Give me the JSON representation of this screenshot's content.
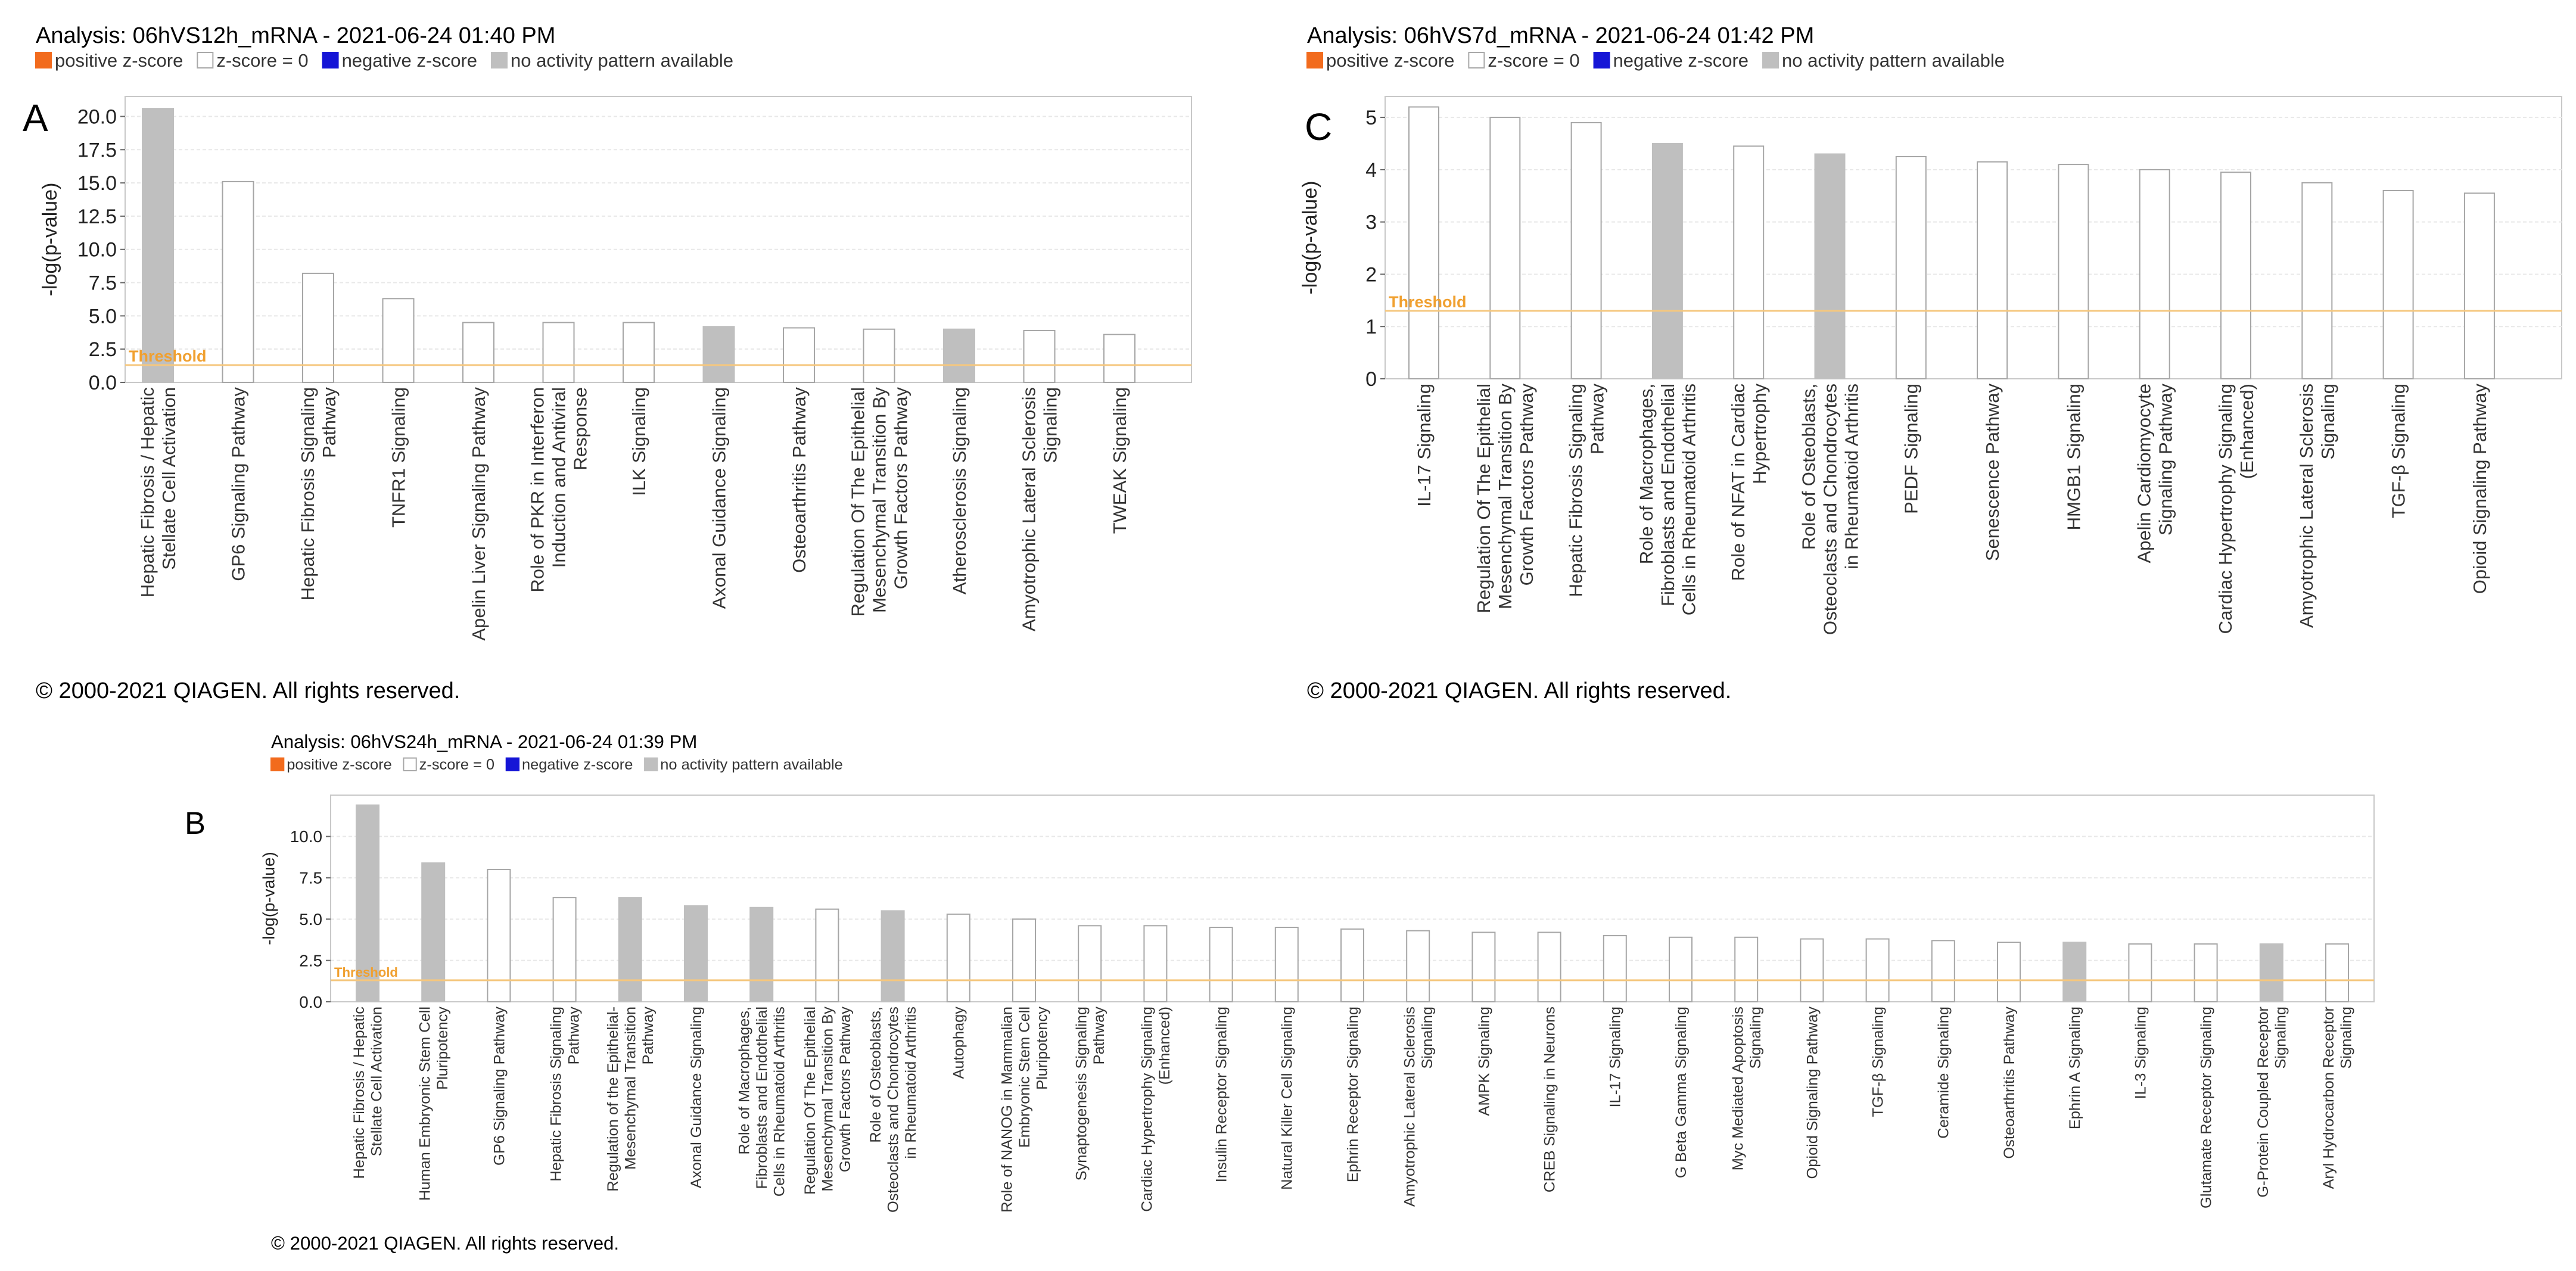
{
  "figure_letters": [
    "A",
    "C",
    "B"
  ],
  "legend": {
    "items": [
      {
        "label": "positive z-score",
        "color": "#F26B1D",
        "border": "#F26B1D"
      },
      {
        "label": "z-score = 0",
        "color": "#FFFFFF",
        "border": "#A9A9A9"
      },
      {
        "label": "negative z-score",
        "color": "#1515D6",
        "border": "#1515D6"
      },
      {
        "label": "no activity pattern available",
        "color": "#BFBFBF",
        "border": "#BFBFBF"
      }
    ]
  },
  "colors": {
    "grey_bar": "#BFBFBF",
    "white_bar_stroke": "#A6A6A6",
    "threshold": "#F5C77E",
    "threshold_text": "#F0A030",
    "grid": "#E8E8E8",
    "axis": "#C8C8C8"
  },
  "chart_data": [
    {
      "panel": "A",
      "type": "bar",
      "title": "Analysis: 06hVS12h_mRNA - 2021-06-24 01:40 PM",
      "ylabel": "-log(p-value)",
      "xlabel": "",
      "ylim": [
        0,
        21.5
      ],
      "yticks": [
        0.0,
        2.5,
        5.0,
        7.5,
        10.0,
        12.5,
        15.0,
        17.5,
        20.0
      ],
      "ytick_labels": [
        "0.0",
        "2.5",
        "5.0",
        "7.5",
        "10.0",
        "12.5",
        "15.0",
        "17.5",
        "20.0"
      ],
      "threshold": 1.3,
      "threshold_label": "Threshold",
      "grid": true,
      "copyright": "© 2000-2021 QIAGEN. All rights reserved.",
      "categories": [
        [
          "Hepatic Fibrosis / Hepatic",
          "Stellate Cell Activation"
        ],
        [
          "GP6 Signaling Pathway"
        ],
        [
          "Hepatic Fibrosis Signaling",
          "Pathway"
        ],
        [
          "TNFR1 Signaling"
        ],
        [
          "Apelin Liver Signaling Pathway"
        ],
        [
          "Role of PKR in Interferon",
          "Induction and Antiviral",
          "Response"
        ],
        [
          "ILK Signaling"
        ],
        [
          "Axonal Guidance Signaling"
        ],
        [
          "Osteoarthritis Pathway"
        ],
        [
          "Regulation Of The Epithelial",
          "Mesenchymal Transition By",
          "Growth Factors Pathway"
        ],
        [
          "Atherosclerosis Signaling"
        ],
        [
          "Amyotrophic Lateral Sclerosis",
          "Signaling"
        ],
        [
          "TWEAK Signaling"
        ]
      ],
      "values": [
        20.6,
        15.1,
        8.2,
        6.3,
        4.5,
        4.5,
        4.5,
        4.2,
        4.1,
        4.0,
        4.0,
        3.9,
        3.6
      ],
      "zscore": [
        "na",
        "zero",
        "zero",
        "zero",
        "zero",
        "zero",
        "zero",
        "na",
        "zero",
        "zero",
        "na",
        "zero",
        "zero"
      ]
    },
    {
      "panel": "C",
      "type": "bar",
      "title": "Analysis: 06hVS7d_mRNA - 2021-06-24 01:42 PM",
      "ylabel": "-log(p-value)",
      "xlabel": "",
      "ylim": [
        0,
        5.4
      ],
      "yticks": [
        0,
        1,
        2,
        3,
        4,
        5
      ],
      "ytick_labels": [
        "0",
        "1",
        "2",
        "3",
        "4",
        "5"
      ],
      "threshold": 1.3,
      "threshold_label": "Threshold",
      "grid": true,
      "copyright": "© 2000-2021 QIAGEN. All rights reserved.",
      "categories": [
        [
          "IL-17 Signaling"
        ],
        [
          "Regulation Of The Epithelial",
          "Mesenchymal Transition By",
          "Growth Factors Pathway"
        ],
        [
          "Hepatic Fibrosis Signaling",
          "Pathway"
        ],
        [
          "Role of Macrophages,",
          "Fibroblasts and Endothelial",
          "Cells in Rheumatoid Arthritis"
        ],
        [
          "Role of NFAT in Cardiac",
          "Hypertrophy"
        ],
        [
          "Role of Osteoblasts,",
          "Osteoclasts and Chondrocytes",
          "in Rheumatoid Arthritis"
        ],
        [
          "PEDF Signaling"
        ],
        [
          "Senescence Pathway"
        ],
        [
          "HMGB1 Signaling"
        ],
        [
          "Apelin Cardiomyocyte",
          "Signaling Pathway"
        ],
        [
          "Cardiac Hypertrophy Signaling",
          "(Enhanced)"
        ],
        [
          "Amyotrophic Lateral Sclerosis",
          "Signaling"
        ],
        [
          "TGF-β Signaling"
        ],
        [
          "Opioid Signaling Pathway"
        ]
      ],
      "values": [
        5.2,
        5.0,
        4.9,
        4.5,
        4.45,
        4.3,
        4.25,
        4.15,
        4.1,
        4.0,
        3.95,
        3.75,
        3.6,
        3.55
      ],
      "zscore": [
        "zero",
        "zero",
        "zero",
        "na",
        "zero",
        "na",
        "zero",
        "zero",
        "zero",
        "zero",
        "zero",
        "zero",
        "zero",
        "zero"
      ]
    },
    {
      "panel": "B",
      "type": "bar",
      "title": "Analysis: 06hVS24h_mRNA - 2021-06-24 01:39 PM",
      "ylabel": "-log(p-value)",
      "xlabel": "",
      "ylim": [
        0,
        12.5
      ],
      "yticks": [
        0.0,
        2.5,
        5.0,
        7.5,
        10.0
      ],
      "ytick_labels": [
        "0.0",
        "2.5",
        "5.0",
        "7.5",
        "10.0"
      ],
      "threshold": 1.3,
      "threshold_label": "Threshold",
      "grid": true,
      "copyright": "© 2000-2021 QIAGEN. All rights reserved.",
      "categories": [
        [
          "Hepatic Fibrosis / Hepatic",
          "Stellate Cell Activation"
        ],
        [
          "Human Embryonic Stem Cell",
          "Pluripotency"
        ],
        [
          "GP6 Signaling Pathway"
        ],
        [
          "Hepatic Fibrosis Signaling",
          "Pathway"
        ],
        [
          "Regulation of the Epithelial-",
          "Mesenchymal Transition",
          "Pathway"
        ],
        [
          "Axonal Guidance Signaling"
        ],
        [
          "Role of Macrophages,",
          "Fibroblasts and Endothelial",
          "Cells in Rheumatoid Arthritis"
        ],
        [
          "Regulation Of The Epithelial",
          "Mesenchymal Transition By",
          "Growth Factors Pathway"
        ],
        [
          "Role of Osteoblasts,",
          "Osteoclasts and Chondrocytes",
          "in Rheumatoid Arthritis"
        ],
        [
          "Autophagy"
        ],
        [
          "Role of NANOG in Mammalian",
          "Embryonic Stem Cell",
          "Pluripotency"
        ],
        [
          "Synaptogenesis Signaling",
          "Pathway"
        ],
        [
          "Cardiac Hypertrophy Signaling",
          "(Enhanced)"
        ],
        [
          "Insulin Receptor Signaling"
        ],
        [
          "Natural Killer Cell Signaling"
        ],
        [
          "Ephrin Receptor Signaling"
        ],
        [
          "Amyotrophic Lateral Sclerosis",
          "Signaling"
        ],
        [
          "AMPK Signaling"
        ],
        [
          "CREB Signaling in Neurons"
        ],
        [
          "IL-17 Signaling"
        ],
        [
          "G Beta Gamma Signaling"
        ],
        [
          "Myc Mediated Apoptosis",
          "Signaling"
        ],
        [
          "Opioid Signaling Pathway"
        ],
        [
          "TGF-β Signaling"
        ],
        [
          "Ceramide Signaling"
        ],
        [
          "Osteoarthritis Pathway"
        ],
        [
          "Ephrin A Signaling"
        ],
        [
          "IL-3 Signaling"
        ],
        [
          "Glutamate Receptor Signaling"
        ],
        [
          "G-Protein Coupled Receptor",
          "Signaling"
        ],
        [
          "Aryl Hydrocarbon Receptor",
          "Signaling"
        ]
      ],
      "values": [
        11.9,
        8.4,
        8.0,
        6.3,
        6.3,
        5.8,
        5.7,
        5.6,
        5.5,
        5.3,
        5.0,
        4.6,
        4.6,
        4.5,
        4.5,
        4.4,
        4.3,
        4.2,
        4.2,
        4.0,
        3.9,
        3.9,
        3.8,
        3.8,
        3.7,
        3.6,
        3.6,
        3.5,
        3.5,
        3.5,
        3.5
      ],
      "zscore": [
        "na",
        "na",
        "zero",
        "zero",
        "na",
        "na",
        "na",
        "zero",
        "na",
        "zero",
        "zero",
        "zero",
        "zero",
        "zero",
        "zero",
        "zero",
        "zero",
        "zero",
        "zero",
        "zero",
        "zero",
        "zero",
        "zero",
        "zero",
        "zero",
        "zero",
        "na",
        "zero",
        "zero",
        "na",
        "zero"
      ]
    }
  ]
}
